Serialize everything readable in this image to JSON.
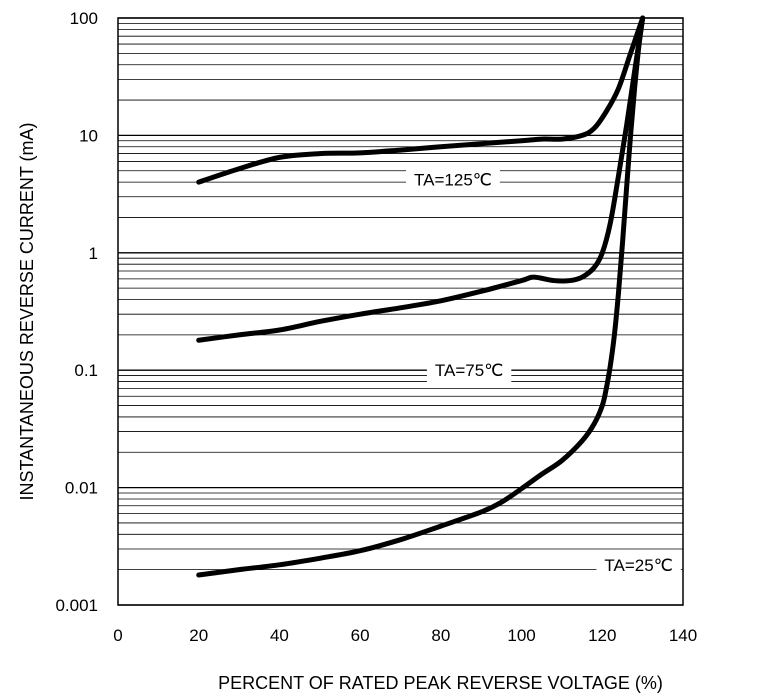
{
  "chart_data": {
    "type": "line",
    "xlabel": "PERCENT OF RATED PEAK REVERSE VOLTAGE (%)",
    "ylabel": "INSTANTANEOUS REVERSE CURRENT (mA)",
    "xlim": [
      0,
      140
    ],
    "ylim": [
      0.001,
      100
    ],
    "yscale": "log",
    "grid": true,
    "x_ticks": [
      "0",
      "20",
      "40",
      "60",
      "80",
      "100",
      "120",
      "140"
    ],
    "y_ticks": [
      "0.001",
      "0.01",
      "0.1",
      "1",
      "10",
      "100"
    ],
    "series": [
      {
        "name": "TA=125℃",
        "x": [
          20,
          30,
          40,
          50,
          60,
          70,
          80,
          90,
          100,
          105,
          110,
          115,
          118,
          121,
          124,
          127,
          130
        ],
        "y": [
          4,
          5.2,
          6.5,
          7,
          7.1,
          7.5,
          8,
          8.5,
          9,
          9.3,
          9.3,
          10,
          11.5,
          16,
          25,
          50,
          100
        ]
      },
      {
        "name": "TA=75℃",
        "x": [
          20,
          30,
          40,
          50,
          60,
          70,
          80,
          90,
          100,
          103,
          108,
          112,
          115,
          118,
          120,
          122,
          124,
          126,
          128,
          130
        ],
        "y": [
          0.18,
          0.2,
          0.22,
          0.26,
          0.3,
          0.34,
          0.39,
          0.47,
          0.58,
          0.62,
          0.58,
          0.58,
          0.62,
          0.75,
          1.0,
          1.8,
          4.5,
          12,
          35,
          100
        ]
      },
      {
        "name": "TA=25℃",
        "x": [
          20,
          30,
          40,
          50,
          60,
          70,
          80,
          90,
          95,
          100,
          105,
          110,
          115,
          118,
          120,
          121,
          122,
          123,
          124,
          125,
          126,
          127,
          128,
          129,
          130
        ],
        "y": [
          0.0018,
          0.002,
          0.0022,
          0.0025,
          0.0029,
          0.0036,
          0.0047,
          0.0062,
          0.0075,
          0.0098,
          0.013,
          0.017,
          0.025,
          0.035,
          0.05,
          0.07,
          0.11,
          0.2,
          0.45,
          1.2,
          3.5,
          10,
          25,
          55,
          100
        ]
      }
    ],
    "annotations": [
      {
        "text": "TA=125℃",
        "x": 83,
        "y": 4.2
      },
      {
        "text": "TA=75℃",
        "x": 87,
        "y": 0.1
      },
      {
        "text": "TA=25℃",
        "x": 129,
        "y": 0.0022
      }
    ]
  }
}
